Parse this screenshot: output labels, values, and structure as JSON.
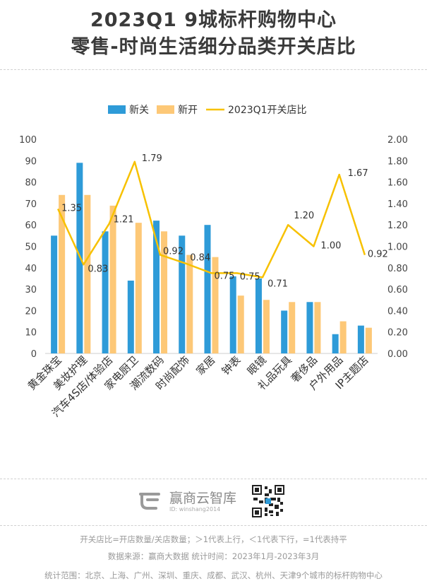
{
  "title_line1": "2023Q1  9城标杆购物中心",
  "title_line2": "零售-时尚生活细分品类开关店比",
  "chart_data": {
    "type": "bar",
    "categories": [
      "黄金珠宝",
      "美妆护理",
      "汽车4S店/体验店",
      "家电厨卫",
      "潮流数码",
      "时尚配饰",
      "家居",
      "钟表",
      "眼镜",
      "礼品玩具",
      "奢侈品",
      "户外用品",
      "IP主题店"
    ],
    "series": [
      {
        "name": "新关",
        "type": "bar",
        "axis": "left",
        "color": "#2e9bd8",
        "values": [
          55,
          89,
          57,
          34,
          62,
          55,
          60,
          36,
          35,
          20,
          24,
          9,
          13
        ]
      },
      {
        "name": "新开",
        "type": "bar",
        "axis": "left",
        "color": "#fdc877",
        "values": [
          74,
          74,
          69,
          61,
          57,
          46,
          45,
          27,
          25,
          24,
          24,
          15,
          12
        ]
      },
      {
        "name": "2023Q1开关店比",
        "type": "line",
        "axis": "right",
        "color": "#f7c100",
        "values": [
          1.35,
          0.83,
          1.21,
          1.79,
          0.92,
          0.84,
          0.75,
          0.75,
          0.71,
          1.2,
          1.0,
          1.67,
          0.92
        ]
      }
    ],
    "data_labels": [
      "1.35",
      "0.83",
      "1.21",
      "1.79",
      "0.92",
      "0.84",
      "0.75",
      "0.75",
      "0.71",
      "1.20",
      "1.00",
      "1.67",
      "0.92"
    ],
    "left_axis": {
      "ylim": [
        0,
        100
      ],
      "ticks": [
        "0",
        "10",
        "20",
        "30",
        "40",
        "50",
        "60",
        "70",
        "80",
        "90",
        "100"
      ]
    },
    "right_axis": {
      "ylim": [
        0,
        2
      ],
      "ticks": [
        "0.00",
        "0.20",
        "0.40",
        "0.60",
        "0.80",
        "1.00",
        "1.20",
        "1.40",
        "1.60",
        "1.80",
        "2.00"
      ]
    },
    "legend_position": "top-center",
    "grid": false
  },
  "brand": {
    "name": "赢商云智库",
    "id": "ID: winshang2014"
  },
  "footer": {
    "line1": "开关店比=开店数量/关店数量；＞1代表上行，＜1代表下行，=1代表持平",
    "line2": "数据来源：赢商大数据  统计时间：2023年1月-2023年3月",
    "line3": "统计范围：北京、上海、广州、深圳、重庆、成都、武汉、杭州、天津9个城市的标杆购物中心"
  }
}
